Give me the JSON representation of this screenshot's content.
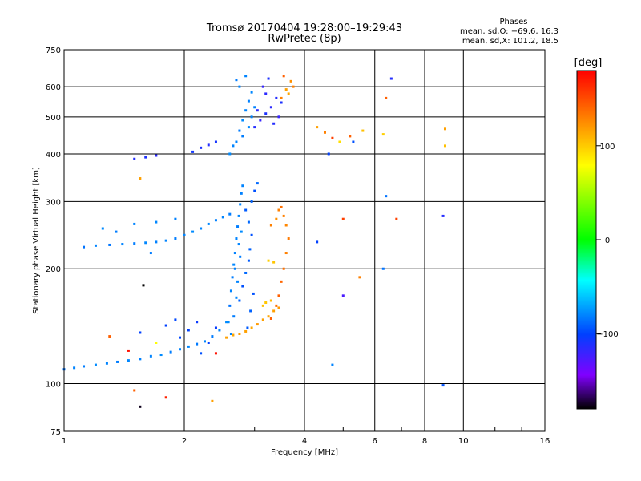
{
  "chart_data": {
    "type": "scatter",
    "title": "Tromsø 20170404 19:28:00–19:29:43",
    "subtitle": "RwPretec (8p)",
    "xlabel": "Frequency [MHz]",
    "ylabel": "Stationary phase Virtual Height [km]",
    "x_scale": "log",
    "y_scale": "log",
    "xlim": [
      1,
      16
    ],
    "ylim": [
      75,
      750
    ],
    "x_ticks": [
      1,
      2,
      4,
      6,
      8,
      10,
      16
    ],
    "x_tick_labels": [
      "1",
      "2",
      "4",
      "6",
      "8",
      "10",
      "16"
    ],
    "y_ticks": [
      75,
      100,
      200,
      300,
      400,
      500,
      600,
      750
    ],
    "y_tick_labels": [
      "75",
      "100",
      "200",
      "300",
      "400",
      "500",
      "600",
      "750"
    ],
    "grid": true,
    "legend": {
      "title": "Phases",
      "lines": [
        "mean, sd,O: −69.6, 16.3",
        "mean, sd,X: 101.2, 18.5"
      ]
    },
    "colorbar": {
      "label": "[deg]",
      "range": [
        -180,
        180
      ],
      "ticks": [
        100,
        0,
        -100
      ],
      "tick_labels": [
        "100",
        "0",
        "−100"
      ],
      "colors": [
        "#ff0000",
        "#ff8000",
        "#ffff00",
        "#00ff00",
        "#00ffff",
        "#0040ff",
        "#8000ff",
        "#000000"
      ]
    },
    "series": [
      {
        "points": [
          [
            1.0,
            109,
            -85
          ],
          [
            1.06,
            110,
            -80
          ],
          [
            1.12,
            111,
            -82
          ],
          [
            1.2,
            112,
            -78
          ],
          [
            1.28,
            113,
            -80
          ],
          [
            1.36,
            114,
            -82
          ],
          [
            1.45,
            115,
            -79
          ],
          [
            1.55,
            116,
            -81
          ],
          [
            1.65,
            118,
            -80
          ],
          [
            1.75,
            119,
            -78
          ],
          [
            1.85,
            121,
            -82
          ],
          [
            1.95,
            123,
            -80
          ],
          [
            2.05,
            125,
            -79
          ],
          [
            2.15,
            127,
            -83
          ],
          [
            2.25,
            129,
            -80
          ],
          [
            2.35,
            133,
            -82
          ],
          [
            2.45,
            138,
            -80
          ],
          [
            2.55,
            145,
            -78
          ],
          [
            1.12,
            228,
            -85
          ],
          [
            1.2,
            230,
            -80
          ],
          [
            1.3,
            231,
            -84
          ],
          [
            1.4,
            232,
            -80
          ],
          [
            1.5,
            233,
            -82
          ],
          [
            1.6,
            234,
            -79
          ],
          [
            1.7,
            235,
            -81
          ],
          [
            1.8,
            237,
            -80
          ],
          [
            1.9,
            240,
            -82
          ],
          [
            2.0,
            245,
            -80
          ],
          [
            2.1,
            250,
            -78
          ],
          [
            2.2,
            255,
            -80
          ],
          [
            2.3,
            262,
            -79
          ],
          [
            2.4,
            268,
            -81
          ],
          [
            2.5,
            273,
            -80
          ],
          [
            2.6,
            278,
            -82
          ],
          [
            1.25,
            255,
            -78
          ],
          [
            1.35,
            250,
            -82
          ],
          [
            1.5,
            262,
            -80
          ],
          [
            1.7,
            265,
            -79
          ],
          [
            1.9,
            270,
            -81
          ],
          [
            1.5,
            388,
            -110
          ],
          [
            1.6,
            392,
            -108
          ],
          [
            1.7,
            396,
            -112
          ],
          [
            2.1,
            405,
            -105
          ],
          [
            2.2,
            415,
            -108
          ],
          [
            2.3,
            422,
            -110
          ],
          [
            2.4,
            430,
            -106
          ],
          [
            2.6,
            160,
            -85
          ],
          [
            2.62,
            175,
            -80
          ],
          [
            2.64,
            190,
            -82
          ],
          [
            2.66,
            205,
            -79
          ],
          [
            2.68,
            220,
            -81
          ],
          [
            2.7,
            240,
            -80
          ],
          [
            2.72,
            258,
            -82
          ],
          [
            2.74,
            275,
            -80
          ],
          [
            2.76,
            295,
            -79
          ],
          [
            2.78,
            315,
            -81
          ],
          [
            2.8,
            330,
            -80
          ],
          [
            2.58,
            145,
            -78
          ],
          [
            2.62,
            135,
            -80
          ],
          [
            2.66,
            150,
            -82
          ],
          [
            2.7,
            168,
            -79
          ],
          [
            2.72,
            185,
            -80
          ],
          [
            2.68,
            200,
            -81
          ],
          [
            2.76,
            215,
            -82
          ],
          [
            2.74,
            232,
            -80
          ],
          [
            2.78,
            250,
            -78
          ],
          [
            2.75,
            165,
            -90
          ],
          [
            2.8,
            180,
            -95
          ],
          [
            2.85,
            195,
            -88
          ],
          [
            2.9,
            210,
            -92
          ],
          [
            2.92,
            225,
            -90
          ],
          [
            2.95,
            245,
            -95
          ],
          [
            2.9,
            265,
            -88
          ],
          [
            2.85,
            285,
            -92
          ],
          [
            2.95,
            300,
            -90
          ],
          [
            3.0,
            320,
            -95
          ],
          [
            3.05,
            335,
            -88
          ],
          [
            2.88,
            140,
            -92
          ],
          [
            2.93,
            155,
            -90
          ],
          [
            2.98,
            172,
            -95
          ],
          [
            2.2,
            120,
            -95
          ],
          [
            2.3,
            128,
            -100
          ],
          [
            2.4,
            140,
            -102
          ],
          [
            1.95,
            132,
            -98
          ],
          [
            2.05,
            138,
            -100
          ],
          [
            2.15,
            145,
            -103
          ],
          [
            1.8,
            142,
            -100
          ],
          [
            1.9,
            147,
            -98
          ],
          [
            2.55,
            132,
            130
          ],
          [
            2.65,
            134,
            128
          ],
          [
            2.75,
            135,
            132
          ],
          [
            2.85,
            137,
            130
          ],
          [
            2.95,
            140,
            128
          ],
          [
            3.05,
            143,
            132
          ],
          [
            3.15,
            147,
            130
          ],
          [
            3.25,
            150,
            128
          ],
          [
            3.35,
            155,
            130
          ],
          [
            3.45,
            158,
            132
          ],
          [
            3.3,
            148,
            150
          ],
          [
            3.4,
            160,
            145
          ],
          [
            3.45,
            170,
            150
          ],
          [
            3.5,
            185,
            148
          ],
          [
            3.55,
            200,
            145
          ],
          [
            3.6,
            220,
            140
          ],
          [
            3.65,
            240,
            142
          ],
          [
            3.6,
            260,
            138
          ],
          [
            3.55,
            275,
            140
          ],
          [
            3.5,
            290,
            145
          ],
          [
            3.15,
            160,
            120
          ],
          [
            3.2,
            163,
            118
          ],
          [
            3.3,
            165,
            122
          ],
          [
            3.25,
            210,
            115
          ],
          [
            3.35,
            208,
            118
          ],
          [
            3.3,
            260,
            140
          ],
          [
            3.4,
            270,
            135
          ],
          [
            3.45,
            285,
            140
          ],
          [
            2.7,
            430,
            -80
          ],
          [
            2.75,
            460,
            -82
          ],
          [
            2.8,
            490,
            -78
          ],
          [
            2.85,
            520,
            -80
          ],
          [
            2.9,
            550,
            -81
          ],
          [
            2.95,
            580,
            -79
          ],
          [
            2.75,
            600,
            -80
          ],
          [
            2.7,
            625,
            -82
          ],
          [
            2.85,
            640,
            -80
          ],
          [
            2.6,
            400,
            -78
          ],
          [
            2.65,
            420,
            -80
          ],
          [
            2.8,
            445,
            -82
          ],
          [
            2.9,
            470,
            -79
          ],
          [
            2.95,
            500,
            -80
          ],
          [
            3.0,
            530,
            -81
          ],
          [
            3.0,
            470,
            -110
          ],
          [
            3.1,
            490,
            -115
          ],
          [
            3.2,
            510,
            -108
          ],
          [
            3.3,
            530,
            -112
          ],
          [
            3.4,
            560,
            -110
          ],
          [
            3.15,
            600,
            -115
          ],
          [
            3.25,
            630,
            -108
          ],
          [
            3.05,
            520,
            -112
          ],
          [
            3.35,
            480,
            -110
          ],
          [
            3.45,
            500,
            -115
          ],
          [
            3.5,
            545,
            -108
          ],
          [
            3.2,
            575,
            -112
          ],
          [
            3.5,
            560,
            140
          ],
          [
            3.6,
            590,
            130
          ],
          [
            3.7,
            620,
            135
          ],
          [
            3.75,
            600,
            140
          ],
          [
            3.65,
            575,
            128
          ],
          [
            3.55,
            640,
            150
          ],
          [
            4.3,
            470,
            130
          ],
          [
            4.5,
            455,
            140
          ],
          [
            4.7,
            440,
            160
          ],
          [
            4.9,
            430,
            110
          ],
          [
            5.2,
            445,
            150
          ],
          [
            5.6,
            460,
            120
          ],
          [
            6.3,
            450,
            115
          ],
          [
            4.6,
            400,
            -100
          ],
          [
            5.3,
            430,
            -95
          ],
          [
            6.4,
            560,
            150
          ],
          [
            6.6,
            630,
            -110
          ],
          [
            9.0,
            465,
            130
          ],
          [
            9.0,
            420,
            120
          ],
          [
            6.4,
            310,
            -85
          ],
          [
            6.8,
            270,
            160
          ],
          [
            8.9,
            275,
            -110
          ],
          [
            4.3,
            235,
            -100
          ],
          [
            5.0,
            270,
            160
          ],
          [
            6.3,
            200,
            -85
          ],
          [
            5.5,
            190,
            140
          ],
          [
            5.0,
            170,
            -120
          ],
          [
            4.7,
            112,
            -80
          ],
          [
            8.9,
            99,
            -95
          ],
          [
            1.65,
            220,
            -82
          ],
          [
            1.55,
            345,
            130
          ],
          [
            1.58,
            181,
            -180
          ],
          [
            1.3,
            133,
            150
          ],
          [
            1.45,
            122,
            175
          ],
          [
            1.7,
            128,
            100
          ],
          [
            1.55,
            136,
            -100
          ],
          [
            1.5,
            96,
            150
          ],
          [
            1.8,
            92,
            170
          ],
          [
            1.55,
            87,
            -175
          ],
          [
            2.35,
            90,
            130
          ],
          [
            2.4,
            120,
            175
          ]
        ]
      }
    ]
  }
}
